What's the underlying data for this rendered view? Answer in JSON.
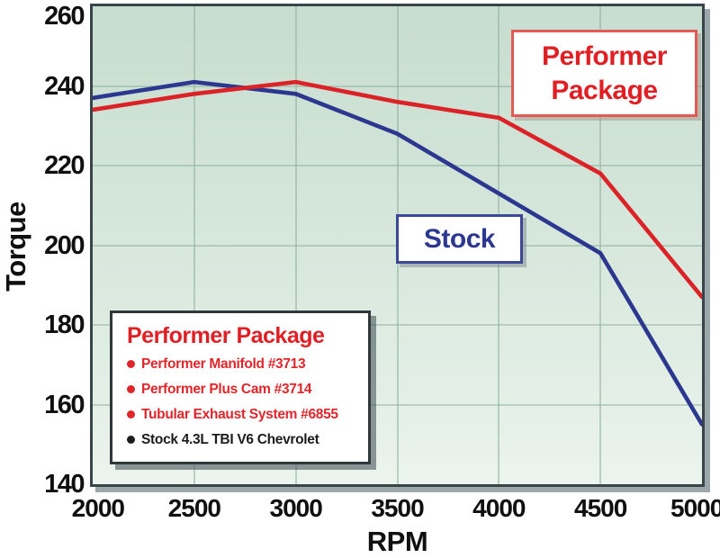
{
  "chart_data": {
    "type": "line",
    "title": "",
    "xlabel": "RPM",
    "ylabel": "Torque",
    "xlim": [
      2000,
      5000
    ],
    "ylim": [
      140,
      260
    ],
    "x_ticks": [
      2000,
      2500,
      3000,
      3500,
      4000,
      4500,
      5000
    ],
    "y_ticks": [
      260,
      240,
      220,
      200,
      180,
      160,
      140
    ],
    "grid": true,
    "legend_position": "in-chart-boxes",
    "x": [
      2000,
      2500,
      3000,
      3500,
      4000,
      4500,
      5000
    ],
    "series": [
      {
        "name": "Stock",
        "color": "#2c3790",
        "values": [
          237,
          241,
          238,
          228,
          213,
          198,
          155
        ]
      },
      {
        "name": "Performer Package",
        "color": "#dc2127",
        "values": [
          234,
          238,
          241,
          236,
          232,
          218,
          187
        ]
      }
    ]
  },
  "callouts": {
    "performer": {
      "line1": "Performer",
      "line2": "Package",
      "color": "#e01f25"
    },
    "stock": {
      "label": "Stock",
      "color": "#2c3790"
    }
  },
  "legend": {
    "title": "Performer Package",
    "title_color": "#e01f25",
    "items": [
      {
        "text": "Performer Manifold #3713",
        "color": "#e0262b"
      },
      {
        "text": "Performer Plus Cam #3714",
        "color": "#e0262b"
      },
      {
        "text": "Tubular Exhaust System #6855",
        "color": "#e0262b"
      },
      {
        "text": "Stock 4.3L TBI V6 Chevrolet",
        "color": "#1c1c1c"
      }
    ]
  },
  "theme": {
    "plot_bg_top": "#c7ddcf",
    "plot_bg_bottom": "#ebf4ed",
    "grid_color": "#90b09d",
    "frame_color": "#3a4549",
    "shadow_color": "#7a8a8e",
    "tick_text_color": "#101010",
    "performer_line_color": "#dc2127",
    "stock_line_color": "#2c3790"
  }
}
